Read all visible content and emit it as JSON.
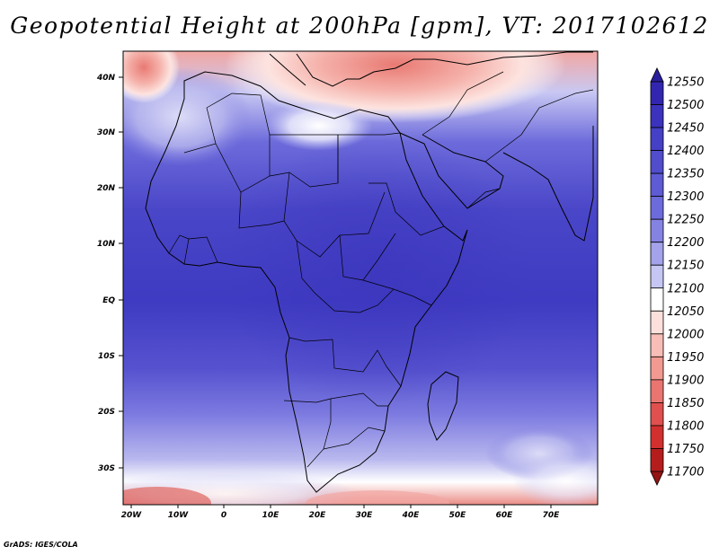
{
  "title": "Geopotential Height at 200hPa [gpm], VT: 2017102612",
  "credit": "GrADS: IGES/COLA",
  "lon_ticks": [
    "20W",
    "10W",
    "0",
    "10E",
    "20E",
    "30E",
    "40E",
    "50E",
    "60E",
    "70E"
  ],
  "lat_ticks": [
    "40N",
    "30N",
    "20N",
    "10N",
    "EQ",
    "10S",
    "20S",
    "30S"
  ],
  "colorbar": {
    "levels": [
      "12550",
      "12500",
      "12450",
      "12400",
      "12350",
      "12300",
      "12250",
      "12200",
      "12150",
      "12100",
      "12050",
      "12000",
      "11950",
      "11900",
      "11850",
      "11800",
      "11750",
      "11700"
    ],
    "colors": [
      "#2a1f9c",
      "#3226b0",
      "#3b33bd",
      "#4540c6",
      "#514dcd",
      "#5e5bd4",
      "#6d6bdb",
      "#8583e2",
      "#a3a2ea",
      "#c6c6f4",
      "#ffffff",
      "#fde0dc",
      "#f7bdb6",
      "#f29a92",
      "#ea7570",
      "#e0504e",
      "#d2302e",
      "#b51d1d",
      "#951414"
    ]
  }
}
